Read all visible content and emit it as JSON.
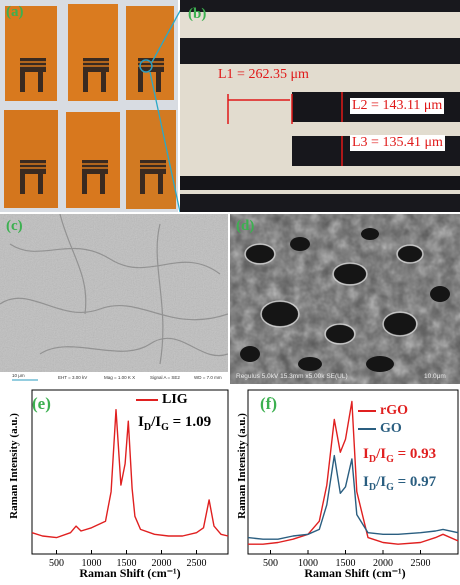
{
  "panels": {
    "a": {
      "label": "(a)"
    },
    "b": {
      "label": "(b)",
      "dims": [
        "L1 = 262.35 μm",
        "L2 = 143.11 μm",
        "L3 = 135.41 μm"
      ]
    },
    "c": {
      "label": "(c)",
      "sem_info": [
        "10 μm",
        "EHT = 3.00 kV",
        "Mag =  1.00 K X",
        "Signal A = SE2",
        "WD =  7.0 mm"
      ]
    },
    "d": {
      "label": "(d)",
      "sem_info": "Regulus 5.0kV 15.3mm x5.00k SE(UL)",
      "scale": "10.0μm"
    }
  },
  "chart_data": [
    {
      "type": "line",
      "panel_label": "(e)",
      "xlabel": "Raman Shift (cm⁻¹)",
      "ylabel": "Raman Intensity (a.u.)",
      "xlim": [
        150,
        2950
      ],
      "ylim": [
        0,
        1
      ],
      "xticks": [
        500,
        1000,
        1500,
        2000,
        2500
      ],
      "y_tick_labels_shown": false,
      "series": [
        {
          "name": "LIG",
          "color": "#e02020",
          "x": [
            150,
            300,
            500,
            700,
            780,
            850,
            1000,
            1200,
            1280,
            1350,
            1420,
            1480,
            1525,
            1580,
            1620,
            1700,
            1900,
            2100,
            2300,
            2500,
            2600,
            2680,
            2750,
            2850,
            2950
          ],
          "y": [
            0.13,
            0.11,
            0.1,
            0.13,
            0.17,
            0.14,
            0.16,
            0.2,
            0.38,
            0.88,
            0.42,
            0.55,
            0.81,
            0.4,
            0.23,
            0.15,
            0.12,
            0.11,
            0.11,
            0.13,
            0.16,
            0.33,
            0.17,
            0.12,
            0.11
          ]
        }
      ],
      "annotation": {
        "text": "I",
        "sub1": "D",
        "mid": "/I",
        "sub2": "G",
        "value": " = 1.09"
      }
    },
    {
      "type": "line",
      "panel_label": "(f)",
      "xlabel": "Raman Shift (cm⁻¹)",
      "ylabel": "Raman Intensity (a.u.)",
      "xlim": [
        200,
        3000
      ],
      "ylim": [
        0,
        1
      ],
      "xticks": [
        500,
        1000,
        1500,
        2000,
        2500
      ],
      "y_tick_labels_shown": false,
      "series": [
        {
          "name": "rGO",
          "color": "#e02020",
          "x": [
            200,
            400,
            600,
            800,
            1000,
            1150,
            1250,
            1350,
            1430,
            1500,
            1585,
            1650,
            1800,
            2000,
            2200,
            2500,
            2700,
            2800,
            3000
          ],
          "y": [
            0.06,
            0.06,
            0.07,
            0.09,
            0.12,
            0.2,
            0.42,
            0.82,
            0.62,
            0.7,
            0.93,
            0.38,
            0.1,
            0.07,
            0.06,
            0.07,
            0.1,
            0.12,
            0.08
          ]
        },
        {
          "name": "GO",
          "color": "#2a5e80",
          "x": [
            200,
            400,
            600,
            800,
            1000,
            1150,
            1250,
            1350,
            1430,
            1500,
            1585,
            1650,
            1800,
            2000,
            2200,
            2500,
            2700,
            2800,
            3000
          ],
          "y": [
            0.1,
            0.09,
            0.09,
            0.11,
            0.12,
            0.15,
            0.3,
            0.6,
            0.37,
            0.41,
            0.58,
            0.24,
            0.13,
            0.12,
            0.12,
            0.13,
            0.14,
            0.15,
            0.13
          ]
        }
      ],
      "annotations": [
        {
          "text": "I",
          "sub1": "D",
          "mid": "/I",
          "sub2": "G",
          "value": " = 0.93",
          "color": "#e02020"
        },
        {
          "text": "I",
          "sub1": "D",
          "mid": "/I",
          "sub2": "G",
          "value": " = 0.97",
          "color": "#2a5e80"
        }
      ]
    }
  ]
}
